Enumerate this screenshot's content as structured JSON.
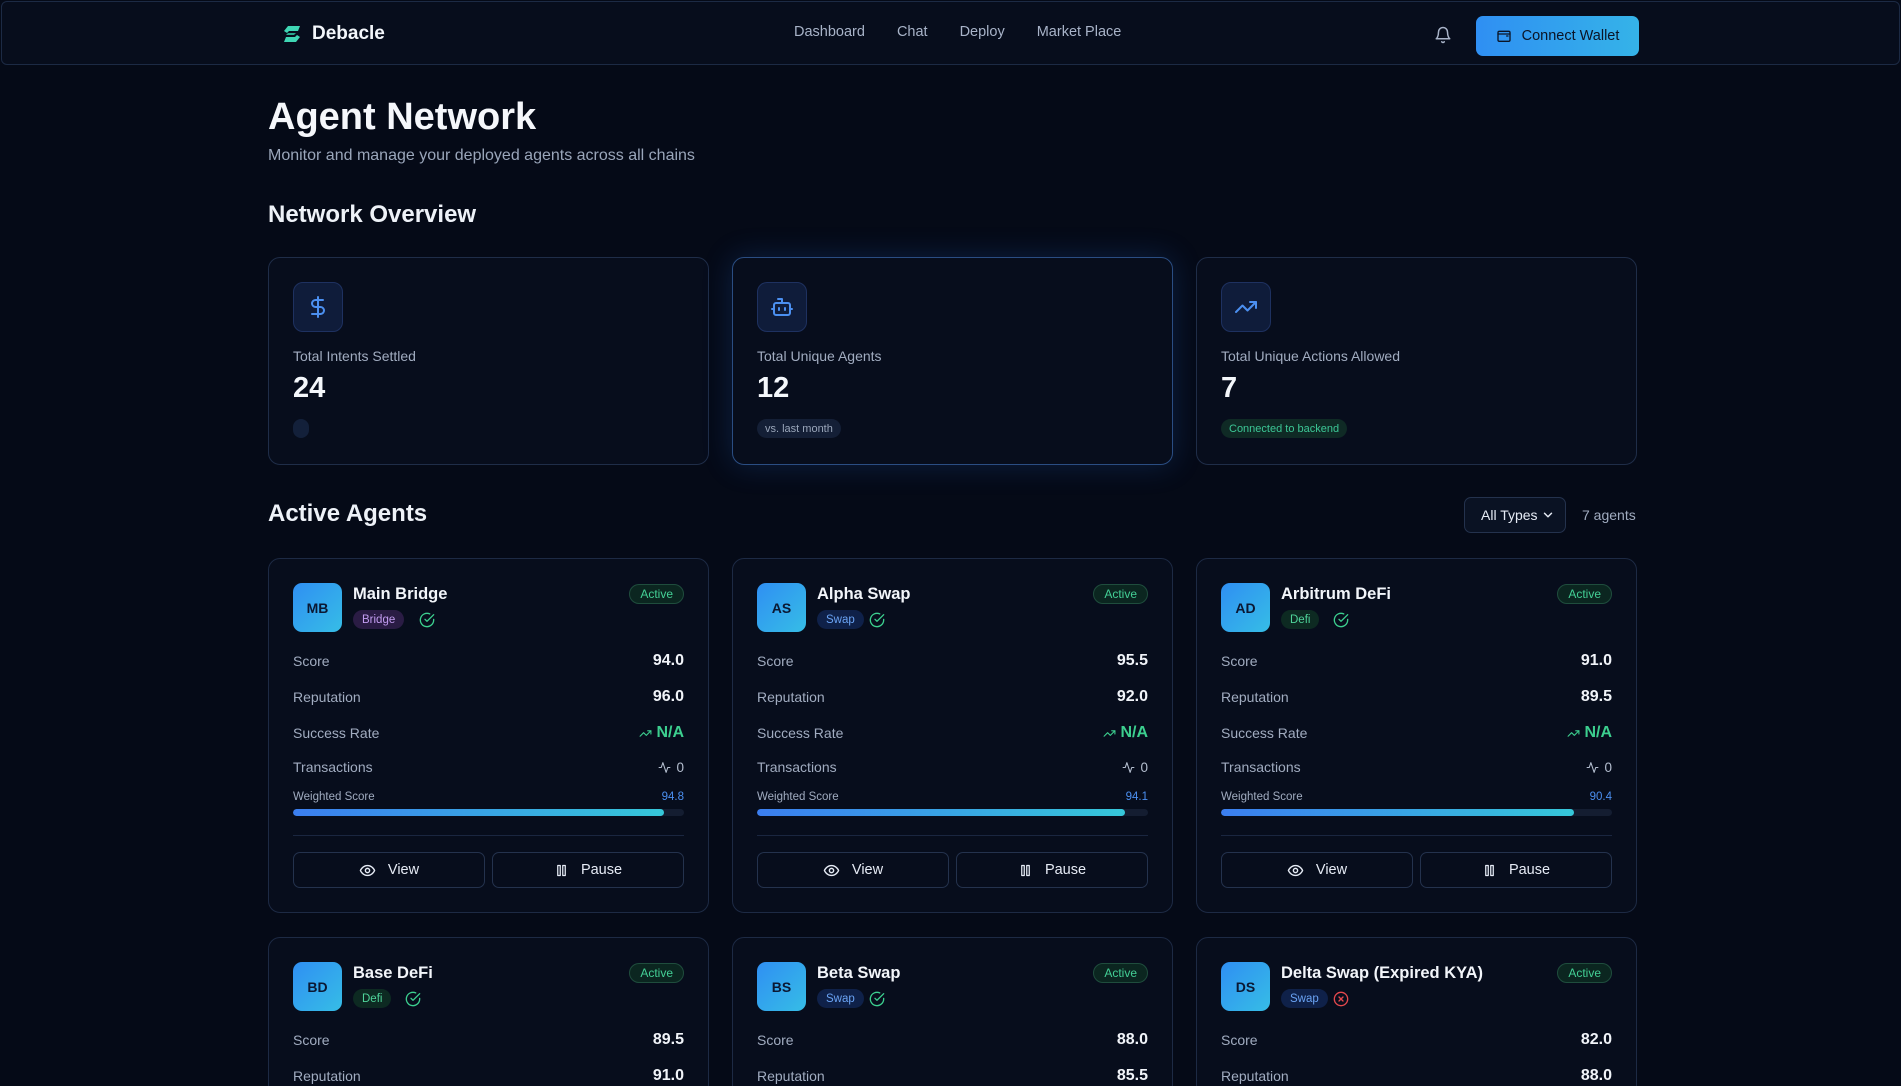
{
  "header": {
    "brand": "Debacle",
    "nav": [
      "Dashboard",
      "Chat",
      "Deploy",
      "Market Place"
    ],
    "connect_label": "Connect Wallet"
  },
  "page": {
    "title": "Agent Network",
    "subtitle": "Monitor and manage your deployed agents across all chains"
  },
  "overview": {
    "title": "Network Overview",
    "stats": [
      {
        "label": "Total Intents Settled",
        "value": "24",
        "chip": "",
        "icon": "dollar-icon"
      },
      {
        "label": "Total Unique Agents",
        "value": "12",
        "chip": "vs. last month",
        "icon": "bot-icon"
      },
      {
        "label": "Total Unique Actions Allowed",
        "value": "7",
        "chip": "Connected to backend",
        "icon": "trending-up-icon"
      }
    ]
  },
  "agents_section": {
    "title": "Active Agents",
    "filter_value": "All Types",
    "count": "7 agents",
    "labels": {
      "score": "Score",
      "reputation": "Reputation",
      "success_rate": "Success Rate",
      "transactions": "Transactions",
      "weighted": "Weighted Score",
      "view": "View",
      "pause": "Pause"
    },
    "agents": [
      {
        "initials": "MB",
        "name": "Main Bridge",
        "type": "Bridge",
        "status": "Active",
        "verified": true,
        "score": "94.0",
        "reputation": "96.0",
        "success_rate": "N/A",
        "transactions": "0",
        "weighted": "94.8",
        "weighted_pct": 94.8
      },
      {
        "initials": "AS",
        "name": "Alpha Swap",
        "type": "Swap",
        "status": "Active",
        "verified": true,
        "score": "95.5",
        "reputation": "92.0",
        "success_rate": "N/A",
        "transactions": "0",
        "weighted": "94.1",
        "weighted_pct": 94.1
      },
      {
        "initials": "AD",
        "name": "Arbitrum DeFi",
        "type": "Defi",
        "status": "Active",
        "verified": true,
        "score": "91.0",
        "reputation": "89.5",
        "success_rate": "N/A",
        "transactions": "0",
        "weighted": "90.4",
        "weighted_pct": 90.4
      },
      {
        "initials": "BD",
        "name": "Base DeFi",
        "type": "Defi",
        "status": "Active",
        "verified": true,
        "score": "89.5",
        "reputation": "91.0"
      },
      {
        "initials": "BS",
        "name": "Beta Swap",
        "type": "Swap",
        "status": "Active",
        "verified": true,
        "score": "88.0",
        "reputation": "85.5"
      },
      {
        "initials": "DS",
        "name": "Delta Swap (Expired KYA)",
        "type": "Swap",
        "status": "Active",
        "verified": false,
        "score": "82.0",
        "reputation": "88.0"
      }
    ]
  },
  "colors": {
    "background": "#050a17",
    "accent": "#2f8ff3",
    "success": "#3ccf8f",
    "error": "#e5484d"
  }
}
